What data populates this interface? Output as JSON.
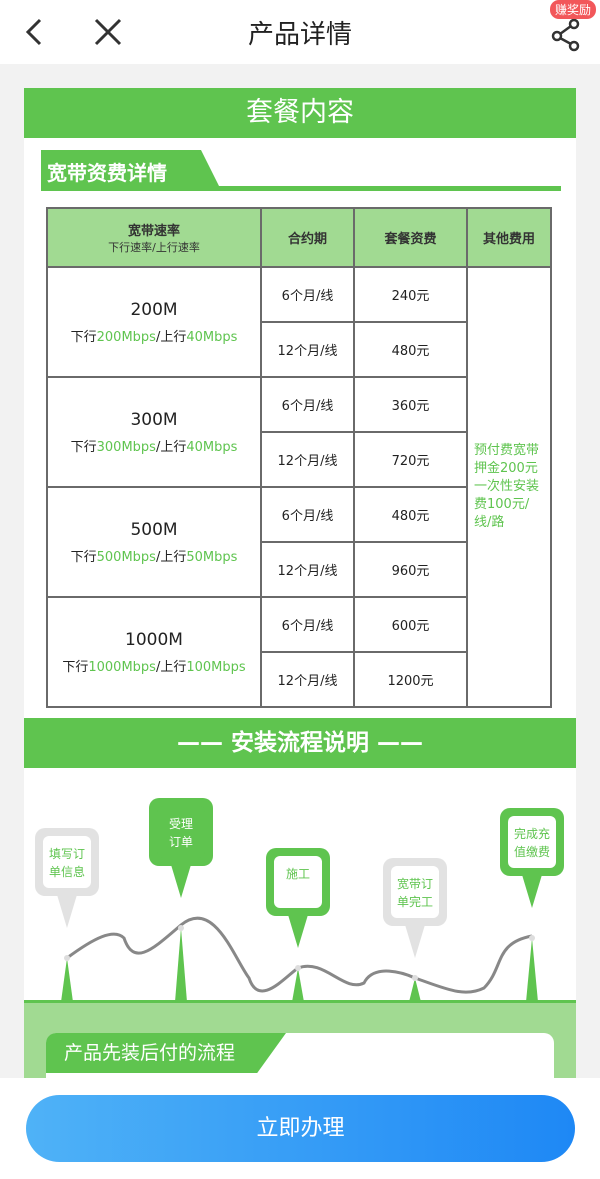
{
  "header": {
    "title": "产品详情",
    "badge": "赚奖励",
    "icons": [
      "back-icon",
      "close-icon",
      "share-icon"
    ]
  },
  "colors": {
    "green": "#5fc44f",
    "light_green": "#a1da92",
    "button_blue": "#1e88f5",
    "badge_red": "#f2575a"
  },
  "banner": "套餐内容",
  "section_tab": "宽带资费详情",
  "table": {
    "headers": {
      "speed": "宽带速率",
      "speed_sub": "下行速率/上行速率",
      "term": "合约期",
      "fee": "套餐资费",
      "other": "其他费用"
    },
    "groups": [
      {
        "speed": "200M",
        "down_label": "下行",
        "down": "200Mbps",
        "up_label": "/上行",
        "up": "40Mbps",
        "rows": [
          {
            "term": "6个月/线",
            "fee": "240元"
          },
          {
            "term": "12个月/线",
            "fee": "480元"
          }
        ]
      },
      {
        "speed": "300M",
        "down_label": "下行",
        "down": "300Mbps",
        "up_label": "/上行",
        "up": "40Mbps",
        "rows": [
          {
            "term": "6个月/线",
            "fee": "360元"
          },
          {
            "term": "12个月/线",
            "fee": "720元"
          }
        ]
      },
      {
        "speed": "500M",
        "down_label": "下行",
        "down": "500Mbps",
        "up_label": "/上行",
        "up": "50Mbps",
        "rows": [
          {
            "term": "6个月/线",
            "fee": "480元"
          },
          {
            "term": "12个月/线",
            "fee": "960元"
          }
        ]
      },
      {
        "speed": "1000M",
        "down_label": "下行",
        "down": "1000Mbps",
        "up_label": "/上行",
        "up": "100Mbps",
        "rows": [
          {
            "term": "6个月/线",
            "fee": "600元"
          },
          {
            "term": "12个月/线",
            "fee": "1200元"
          }
        ]
      }
    ],
    "other_fee": "预付费宽带押金200元一次性安装费100元/线/路"
  },
  "process": {
    "title": "—— 安装流程说明 ——",
    "steps": [
      {
        "line1": "填写订",
        "line2": "单信息",
        "style": "gray"
      },
      {
        "line1": "受理",
        "line2": "订单",
        "style": "green"
      },
      {
        "line1": "施工",
        "line2": "",
        "style": "green"
      },
      {
        "line1": "宽带订",
        "line2": "单完工",
        "style": "gray"
      },
      {
        "line1": "完成充",
        "line2": "值缴费",
        "style": "green"
      }
    ]
  },
  "lower_tab": "产品先装后付的流程",
  "cta": "立即办理"
}
